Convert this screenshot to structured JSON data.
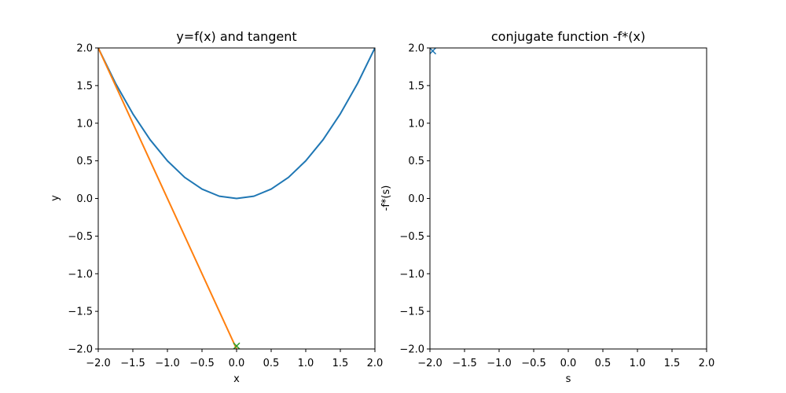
{
  "chart_data": [
    {
      "type": "line",
      "title": "y=f(x) and tangent",
      "xlabel": "x",
      "ylabel": "y",
      "xlim": [
        -2.0,
        2.0
      ],
      "ylim": [
        -2.0,
        2.0
      ],
      "xticks": [
        "−2.0",
        "−1.5",
        "−1.0",
        "−0.5",
        "0.0",
        "0.5",
        "1.0",
        "1.5",
        "2.0"
      ],
      "yticks": [
        "−2.0",
        "−1.5",
        "−1.0",
        "−0.5",
        "0.0",
        "0.5",
        "1.0",
        "1.5",
        "2.0"
      ],
      "grid": false,
      "series": [
        {
          "kind": "line",
          "color": "#1f77b4",
          "x": [
            -2.0,
            -1.75,
            -1.5,
            -1.25,
            -1.0,
            -0.75,
            -0.5,
            -0.25,
            0.0,
            0.25,
            0.5,
            0.75,
            1.0,
            1.25,
            1.5,
            1.75,
            2.0
          ],
          "y": [
            2.0,
            1.53,
            1.125,
            0.78,
            0.5,
            0.28,
            0.125,
            0.03,
            0.0,
            0.03,
            0.125,
            0.28,
            0.5,
            0.78,
            1.125,
            1.53,
            2.0
          ]
        },
        {
          "kind": "line",
          "color": "#ff7f0e",
          "x": [
            -2.0,
            0.0
          ],
          "y": [
            2.0,
            -2.0
          ]
        },
        {
          "kind": "marker",
          "marker": "x",
          "color": "#2ca02c",
          "x": [
            0.0
          ],
          "y": [
            -1.96
          ]
        }
      ]
    },
    {
      "type": "scatter",
      "title": "conjugate function -f*(x)",
      "xlabel": "s",
      "ylabel": "-f*(s)",
      "xlim": [
        -2.0,
        2.0
      ],
      "ylim": [
        -2.0,
        2.0
      ],
      "xticks": [
        "−2.0",
        "−1.5",
        "−1.0",
        "−0.5",
        "0.0",
        "0.5",
        "1.0",
        "1.5",
        "2.0"
      ],
      "yticks": [
        "−2.0",
        "−1.5",
        "−1.0",
        "−0.5",
        "0.0",
        "0.5",
        "1.0",
        "1.5",
        "2.0"
      ],
      "grid": false,
      "series": [
        {
          "kind": "marker",
          "marker": "x",
          "color": "#1f77b4",
          "x": [
            -1.96
          ],
          "y": [
            1.96
          ]
        }
      ]
    }
  ]
}
